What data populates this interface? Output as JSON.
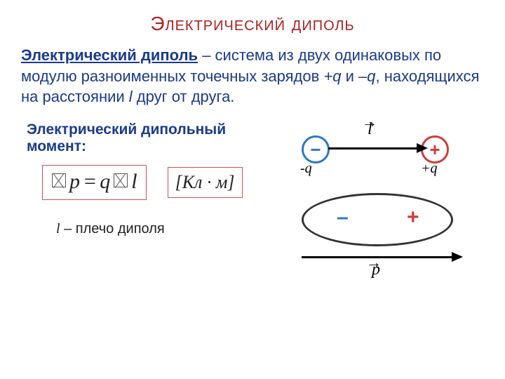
{
  "title": "Электрический диполь",
  "definition": {
    "term": "Электрический диполь",
    "body1": " – система из двух одинаковых по модулю разноименных точечных зарядов ",
    "q_plus": "+q",
    "and": " и ",
    "q_minus": "–q",
    "body2": ", находящихся на расстоянии ",
    "l_sym": "l",
    "body3": " друг от друга."
  },
  "moment_label": "Электрический дипольный момент:",
  "formula": {
    "p": "p",
    "eq": " = ",
    "q": "q",
    "l": "l"
  },
  "unit": "[Кл · м]",
  "legend": {
    "l": "l",
    "text": " – плечо диполя"
  },
  "diagram_top": {
    "neg_sign": "−",
    "pos_sign": "+",
    "l_label": "l",
    "l_vec": "→",
    "qn": "-q",
    "qp": "+q",
    "colors": {
      "neg": "#2b78c4",
      "pos": "#d23a3a",
      "line": "#000000"
    }
  },
  "diagram_bot": {
    "neg_sign": "–",
    "pos_sign": "+",
    "p_label": "p",
    "p_vec": "→",
    "colors": {
      "ellipse": "#333333",
      "neg": "#2b78c4",
      "pos": "#d23a3a",
      "line": "#000000"
    }
  },
  "style": {
    "title_color": "#b02020",
    "text_color": "#1a3a8a",
    "box_border": "#d05050",
    "background": "#ffffff"
  }
}
